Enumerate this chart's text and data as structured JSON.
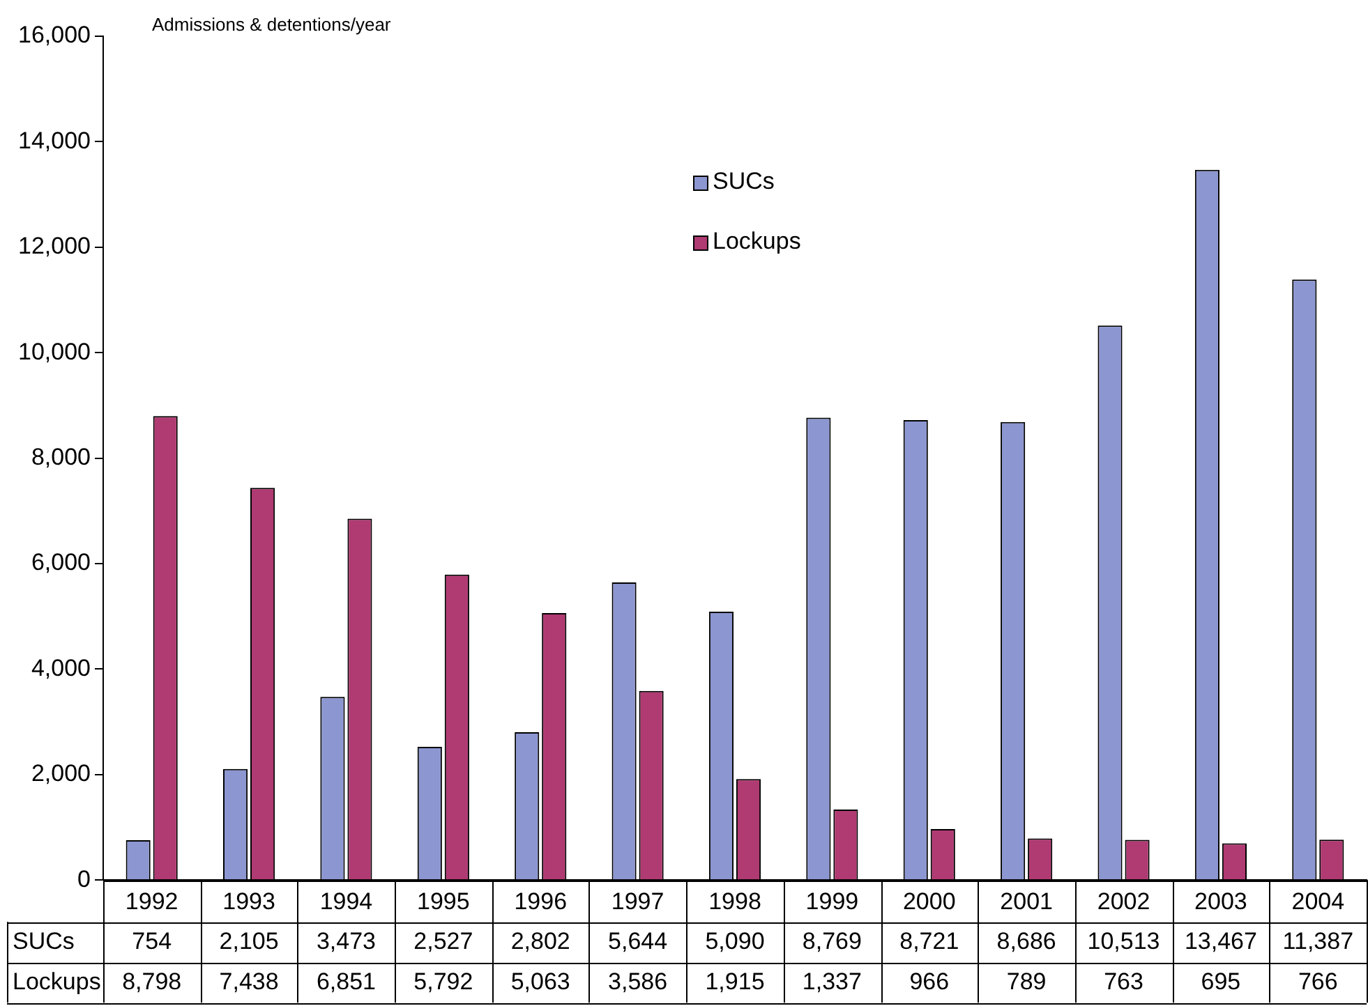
{
  "chart_data": {
    "type": "bar",
    "ylabel": "Admissions & detentions/year",
    "categories": [
      "1992",
      "1993",
      "1994",
      "1995",
      "1996",
      "1997",
      "1998",
      "1999",
      "2000",
      "2001",
      "2002",
      "2003",
      "2004"
    ],
    "series": [
      {
        "name": "SUCs",
        "color": "#8c96d0",
        "values": [
          754,
          2105,
          3473,
          2527,
          2802,
          5644,
          5090,
          8769,
          8721,
          8686,
          10513,
          13467,
          11387
        ],
        "value_labels": [
          "754",
          "2,105",
          "3,473",
          "2,527",
          "2,802",
          "5,644",
          "5,090",
          "8,769",
          "8,721",
          "8,686",
          "10,513",
          "13,467",
          "11,387"
        ]
      },
      {
        "name": "Lockups",
        "color": "#b03a72",
        "values": [
          8798,
          7438,
          6851,
          5792,
          5063,
          3586,
          1915,
          1337,
          966,
          789,
          763,
          695,
          766
        ],
        "value_labels": [
          "8,798",
          "7,438",
          "6,851",
          "5,792",
          "5,063",
          "3,586",
          "1,915",
          "1,337",
          "966",
          "789",
          "763",
          "695",
          "766"
        ]
      }
    ],
    "ylim": [
      0,
      16000
    ],
    "yticks": [
      0,
      {
        "value": 2000,
        "label": "2,000"
      },
      {
        "value": 4000,
        "label": "4,000"
      },
      {
        "value": 6000,
        "label": "6,000"
      },
      {
        "value": 8000,
        "label": "8,000"
      },
      {
        "value": 10000,
        "label": "10,000"
      },
      {
        "value": 12000,
        "label": "12,000"
      },
      {
        "value": 14000,
        "label": "14,000"
      },
      {
        "value": 16000,
        "label": "16,000"
      }
    ],
    "grid": false,
    "legend": "top"
  }
}
